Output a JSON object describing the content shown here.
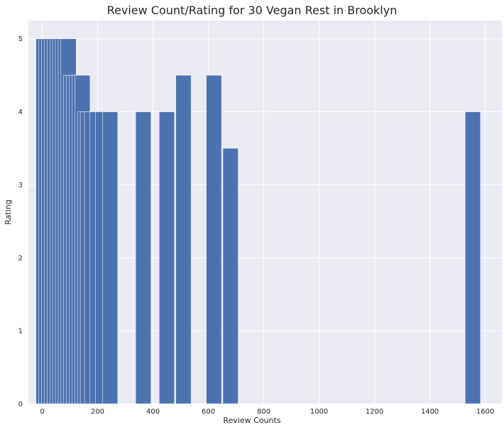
{
  "chart_data": {
    "type": "bar",
    "title": "Review Count/Rating for 30 Vegan Rest in Brooklyn",
    "xlabel": "Review Counts",
    "ylabel": "Rating",
    "xlim": [
      -50,
      1660
    ],
    "ylim": [
      0,
      5.25
    ],
    "x_ticks": [
      0,
      200,
      400,
      600,
      800,
      1000,
      1200,
      1400,
      1600
    ],
    "y_ticks": [
      0,
      1,
      2,
      3,
      4,
      5
    ],
    "bar_width": 55,
    "grid": true,
    "bar_color": "#4c72b0",
    "background_color": "#eaeaf2",
    "grid_color": "#ffffff",
    "x": [
      5,
      15,
      25,
      35,
      45,
      55,
      65,
      75,
      85,
      95,
      105,
      115,
      125,
      135,
      145,
      155,
      165,
      180,
      200,
      220,
      245,
      365,
      450,
      510,
      620,
      680,
      1555
    ],
    "values": [
      5,
      5,
      5,
      5,
      5,
      5,
      5,
      5,
      5,
      5,
      4.5,
      4.5,
      4.5,
      4.5,
      4.5,
      4,
      4,
      4,
      4,
      4,
      4,
      4,
      4,
      4.5,
      4.5,
      3.5,
      4
    ]
  }
}
